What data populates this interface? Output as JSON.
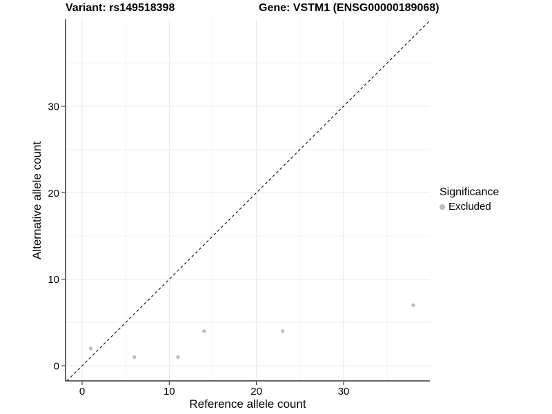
{
  "chart_data": {
    "type": "scatter",
    "titles": {
      "variant": "Variant: rs149518398",
      "gene": "Gene: VSTM1 (ENSG00000189068)"
    },
    "xlabel": "Reference allele count",
    "ylabel": "Alternative allele count",
    "xlim": [
      -1.9,
      39.9
    ],
    "ylim": [
      -1.75,
      40.05
    ],
    "x_ticks": [
      0,
      10,
      20,
      30
    ],
    "y_ticks": [
      0,
      10,
      20,
      30
    ],
    "x_minor_ticks": [
      5,
      15,
      25,
      35
    ],
    "y_minor_ticks": [
      5,
      15,
      25,
      35
    ],
    "grid": true,
    "series": [
      {
        "name": "Excluded",
        "color": "#bdbdbd",
        "points": [
          [
            1,
            2
          ],
          [
            6,
            1
          ],
          [
            11,
            1
          ],
          [
            14,
            4
          ],
          [
            23,
            4
          ],
          [
            38,
            7
          ]
        ]
      }
    ],
    "abline": {
      "slope": 1,
      "intercept": 0,
      "style": "dashed",
      "color": "#1a1a1a"
    },
    "legend": {
      "title": "Significance",
      "position": "right",
      "items": [
        {
          "label": "Excluded",
          "color": "#bdbdbd"
        }
      ]
    },
    "style_colors": {
      "background": "#ffffff",
      "grid_major": "#e8e8e8",
      "grid_minor": "#f3f3f3",
      "axis_line": "#333333",
      "tick": "#333333",
      "text": "#000000"
    }
  }
}
